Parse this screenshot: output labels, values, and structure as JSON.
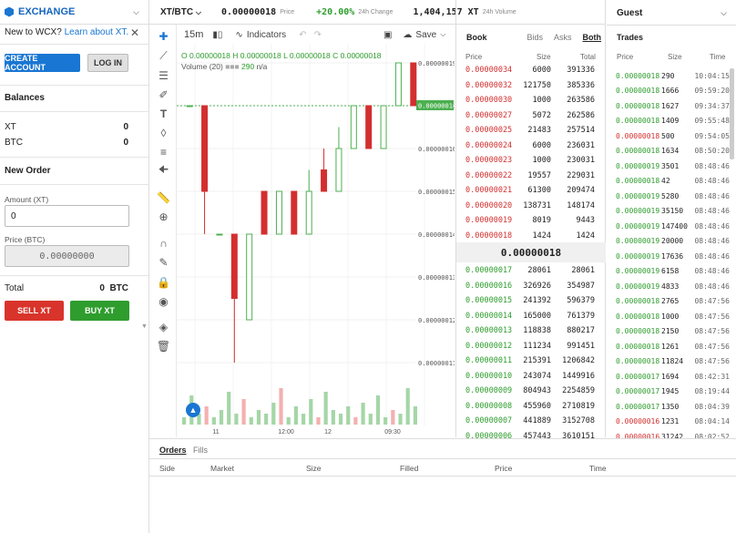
{
  "left": {
    "exchange_title": "EXCHANGE",
    "new_to_text": "New to WCX?",
    "learn_link": "Learn about XT.",
    "create_account": "CREATE ACCOUNT",
    "login": "LOG IN",
    "balances_title": "Balances",
    "balances": [
      {
        "asset": "XT",
        "amount": "0"
      },
      {
        "asset": "BTC",
        "amount": "0"
      }
    ],
    "new_order_title": "New Order",
    "amount_label": "Amount (XT)",
    "amount_value": "0",
    "price_label": "Price (BTC)",
    "price_value": "0.00000000",
    "total_label": "Total",
    "total_value": "0",
    "total_unit": "BTC",
    "sell_label": "SELL  XT",
    "buy_label": "BUY  XT"
  },
  "ticker": {
    "pair": "XT/BTC",
    "price": "0.00000018",
    "price_label": "Price",
    "change": "+20.00%",
    "change_label": "24h Change",
    "volume": "1,404,157 XT",
    "volume_label": "24h Volume"
  },
  "chart_toolbar": {
    "interval": "15m",
    "indicators": "Indicators",
    "save": "Save"
  },
  "chart_ohlc": {
    "o": "O 0.00000018",
    "h": "H 0.00000018",
    "l": "L 0.00000018",
    "c": "C 0.00000018",
    "volume_label": "Volume (20)",
    "volume_value": "290",
    "volume_na": "n/a"
  },
  "chart_data": {
    "type": "candlestick",
    "y_ticks": [
      "0.00000019",
      "0.00000017",
      "0.00000016",
      "0.00000015",
      "0.00000014",
      "0.00000013",
      "0.00000012",
      "0.00000011"
    ],
    "x_ticks": [
      "11",
      "12:00",
      "12",
      "09:30"
    ],
    "last_price_tag": "0.00000018",
    "colors": {
      "up": "#4caf50",
      "down": "#d32f2f"
    },
    "candles": [
      {
        "o": 1.8e-07,
        "c": 1.8e-07,
        "h": 1.8e-07,
        "l": 1.8e-07
      },
      {
        "o": 1.8e-07,
        "c": 1.6e-07,
        "h": 1.8e-07,
        "l": 1.5e-07
      },
      {
        "o": 1.5e-07,
        "c": 1.5e-07,
        "h": 1.5e-07,
        "l": 1.5e-07
      },
      {
        "o": 1.5e-07,
        "c": 1.35e-07,
        "h": 1.5e-07,
        "l": 1.2e-07
      },
      {
        "o": 1.3e-07,
        "c": 1.5e-07,
        "h": 1.5e-07,
        "l": 1.3e-07
      },
      {
        "o": 1.6e-07,
        "c": 1.5e-07,
        "h": 1.6e-07,
        "l": 1.5e-07
      },
      {
        "o": 1.5e-07,
        "c": 1.6e-07,
        "h": 1.6e-07,
        "l": 1.5e-07
      },
      {
        "o": 1.6e-07,
        "c": 1.5e-07,
        "h": 1.6e-07,
        "l": 1.5e-07
      },
      {
        "o": 1.5e-07,
        "c": 1.6e-07,
        "h": 1.65e-07,
        "l": 1.5e-07
      },
      {
        "o": 1.65e-07,
        "c": 1.6e-07,
        "h": 1.7e-07,
        "l": 1.6e-07
      },
      {
        "o": 1.6e-07,
        "c": 1.7e-07,
        "h": 1.75e-07,
        "l": 1.6e-07
      },
      {
        "o": 1.7e-07,
        "c": 1.8e-07,
        "h": 1.8e-07,
        "l": 1.7e-07
      },
      {
        "o": 1.8e-07,
        "c": 1.7e-07,
        "h": 1.8e-07,
        "l": 1.7e-07
      },
      {
        "o": 1.7e-07,
        "c": 1.8e-07,
        "h": 1.8e-07,
        "l": 1.7e-07
      },
      {
        "o": 1.8e-07,
        "c": 1.9e-07,
        "h": 1.9e-07,
        "l": 1.8e-07
      },
      {
        "o": 1.9e-07,
        "c": 1.8e-07,
        "h": 1.9e-07,
        "l": 1.8e-07
      }
    ],
    "volumes": [
      2,
      8,
      3,
      5,
      2,
      4,
      9,
      3,
      7,
      2,
      4,
      3,
      6,
      10,
      2,
      5,
      3,
      7,
      2,
      9,
      4,
      3,
      5,
      2,
      6,
      3,
      8,
      2,
      4,
      3,
      10,
      5
    ]
  },
  "book": {
    "title": "Book",
    "tabs": [
      "Bids",
      "Asks",
      "Both"
    ],
    "cols": [
      "Price",
      "Size",
      "Total"
    ],
    "asks": [
      [
        "0.00000034",
        "6000",
        "391336"
      ],
      [
        "0.00000032",
        "121750",
        "385336"
      ],
      [
        "0.00000030",
        "1000",
        "263586"
      ],
      [
        "0.00000027",
        "5072",
        "262586"
      ],
      [
        "0.00000025",
        "21483",
        "257514"
      ],
      [
        "0.00000024",
        "6000",
        "236031"
      ],
      [
        "0.00000023",
        "1000",
        "230031"
      ],
      [
        "0.00000022",
        "19557",
        "229031"
      ],
      [
        "0.00000021",
        "61300",
        "209474"
      ],
      [
        "0.00000020",
        "138731",
        "148174"
      ],
      [
        "0.00000019",
        "8019",
        "9443"
      ],
      [
        "0.00000018",
        "1424",
        "1424"
      ]
    ],
    "mid": "0.00000018",
    "bids": [
      [
        "0.00000017",
        "28061",
        "28061"
      ],
      [
        "0.00000016",
        "326926",
        "354987"
      ],
      [
        "0.00000015",
        "241392",
        "596379"
      ],
      [
        "0.00000014",
        "165000",
        "761379"
      ],
      [
        "0.00000013",
        "118838",
        "880217"
      ],
      [
        "0.00000012",
        "111234",
        "991451"
      ],
      [
        "0.00000011",
        "215391",
        "1206842"
      ],
      [
        "0.00000010",
        "243074",
        "1449916"
      ],
      [
        "0.00000009",
        "804943",
        "2254859"
      ],
      [
        "0.00000008",
        "455960",
        "2710819"
      ],
      [
        "0.00000007",
        "441889",
        "3152708"
      ],
      [
        "0.00000006",
        "457443",
        "3610151"
      ]
    ]
  },
  "trades": {
    "guest": "Guest",
    "title": "Trades",
    "cols": [
      "Price",
      "Size",
      "Time"
    ],
    "rows": [
      [
        "0.00000018",
        "290",
        "10:04:15",
        "g"
      ],
      [
        "0.00000018",
        "1666",
        "09:59:20",
        "g"
      ],
      [
        "0.00000018",
        "1627",
        "09:34:37",
        "g"
      ],
      [
        "0.00000018",
        "1409",
        "09:55:48",
        "g"
      ],
      [
        "0.00000018",
        "500",
        "09:54:05",
        "r"
      ],
      [
        "0.00000018",
        "1634",
        "08:50:20",
        "g"
      ],
      [
        "0.00000019",
        "3501",
        "08:48:46",
        "g"
      ],
      [
        "0.00000018",
        "42",
        "08:48:46",
        "g"
      ],
      [
        "0.00000019",
        "5280",
        "08:48:46",
        "g"
      ],
      [
        "0.00000019",
        "35150",
        "08:48:46",
        "g"
      ],
      [
        "0.00000019",
        "147400",
        "08:48:46",
        "g"
      ],
      [
        "0.00000019",
        "20000",
        "08:48:46",
        "g"
      ],
      [
        "0.00000019",
        "17636",
        "08:48:46",
        "g"
      ],
      [
        "0.00000019",
        "6158",
        "08:48:46",
        "g"
      ],
      [
        "0.00000019",
        "4833",
        "08:48:46",
        "g"
      ],
      [
        "0.00000018",
        "2765",
        "08:47:56",
        "g"
      ],
      [
        "0.00000018",
        "1000",
        "08:47:56",
        "g"
      ],
      [
        "0.00000018",
        "2150",
        "08:47:56",
        "g"
      ],
      [
        "0.00000018",
        "1261",
        "08:47:56",
        "g"
      ],
      [
        "0.00000018",
        "11824",
        "08:47:56",
        "g"
      ],
      [
        "0.00000017",
        "1694",
        "08:42:31",
        "g"
      ],
      [
        "0.00000017",
        "1945",
        "08:19:44",
        "g"
      ],
      [
        "0.00000017",
        "1350",
        "08:04:39",
        "g"
      ],
      [
        "0.00000016",
        "1231",
        "08:04:14",
        "r"
      ],
      [
        "0.00000016",
        "31242",
        "08:02:52",
        "r"
      ]
    ]
  },
  "bottom": {
    "tabs": [
      "Orders",
      "Fills"
    ],
    "cols": [
      "Side",
      "Market",
      "Size",
      "Filled",
      "Price",
      "Time"
    ]
  }
}
